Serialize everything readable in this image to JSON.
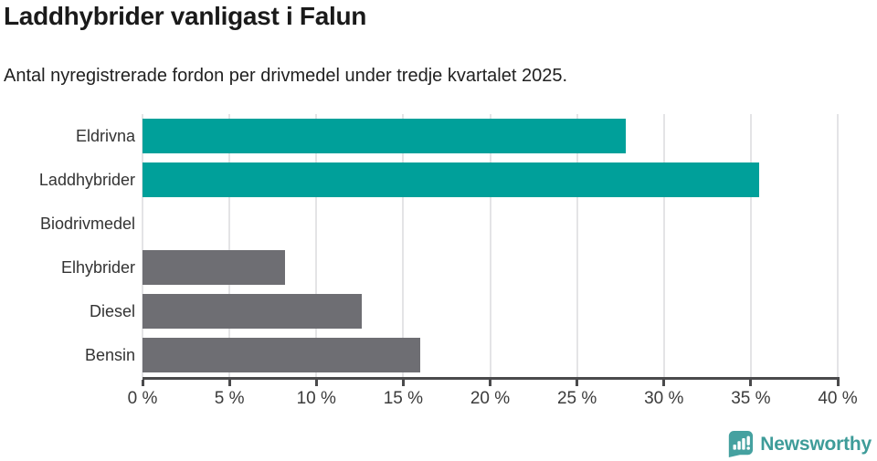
{
  "header": {
    "title": "Laddhybrider vanligast i Falun",
    "subtitle": "Antal nyregistrerade fordon per drivmedel under tredje kvartalet 2025."
  },
  "chart_data": {
    "type": "bar",
    "orientation": "horizontal",
    "title": "Laddhybrider vanligast i Falun",
    "subtitle": "Antal nyregistrerade fordon per drivmedel under tredje kvartalet 2025.",
    "categories": [
      "Eldrivna",
      "Laddhybrider",
      "Biodrivmedel",
      "Elhybrider",
      "Diesel",
      "Bensin"
    ],
    "values": [
      27.8,
      35.5,
      0,
      8.2,
      12.6,
      16.0
    ],
    "unit": "%",
    "xlim": [
      0,
      40
    ],
    "x_ticks": [
      0,
      5,
      10,
      15,
      20,
      25,
      30,
      35,
      40
    ],
    "x_tick_labels": [
      "0 %",
      "5 %",
      "10 %",
      "15 %",
      "20 %",
      "25 %",
      "30 %",
      "35 %",
      "40 %"
    ],
    "grid": true,
    "legend": "none",
    "bar_colors": [
      "#00a09a",
      "#00a09a",
      "#6e6e73",
      "#6e6e73",
      "#6e6e73",
      "#6e6e73"
    ],
    "highlight_color": "#00a09a",
    "default_color": "#6e6e73"
  },
  "colors": {
    "teal_bar": "#00a09a",
    "gray_bar": "#6e6e73",
    "axis": "#4a4a4c",
    "gridline": "#e4e4e6",
    "title_text": "#1a1a1a",
    "logo_teal": "#45a1a0"
  },
  "footer": {
    "brand": "Newsworthy",
    "logo_icon": "speech-bubble-bar-chart-icon"
  }
}
